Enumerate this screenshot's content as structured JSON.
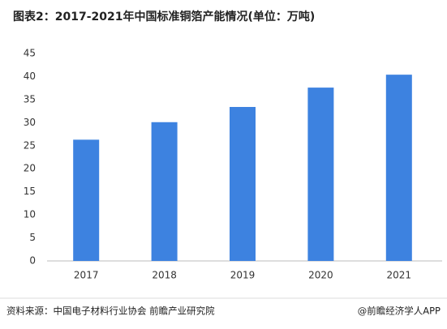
{
  "chart_data": {
    "type": "bar",
    "title": "图表2：2017-2021年中国标准铜箔产能情况(单位：万吨)",
    "categories": [
      "2017",
      "2018",
      "2019",
      "2020",
      "2021"
    ],
    "values": [
      26.3,
      30.1,
      33.4,
      37.6,
      40.4
    ],
    "color": "#3d82e0",
    "ylim": [
      0,
      45
    ],
    "yticks": [
      0,
      5,
      10,
      15,
      20,
      25,
      30,
      35,
      40,
      45
    ],
    "grid": false,
    "source": "资料来源：中国电子材料行业协会 前瞻产业研究院",
    "credit": "@前瞻经济学人APP"
  }
}
